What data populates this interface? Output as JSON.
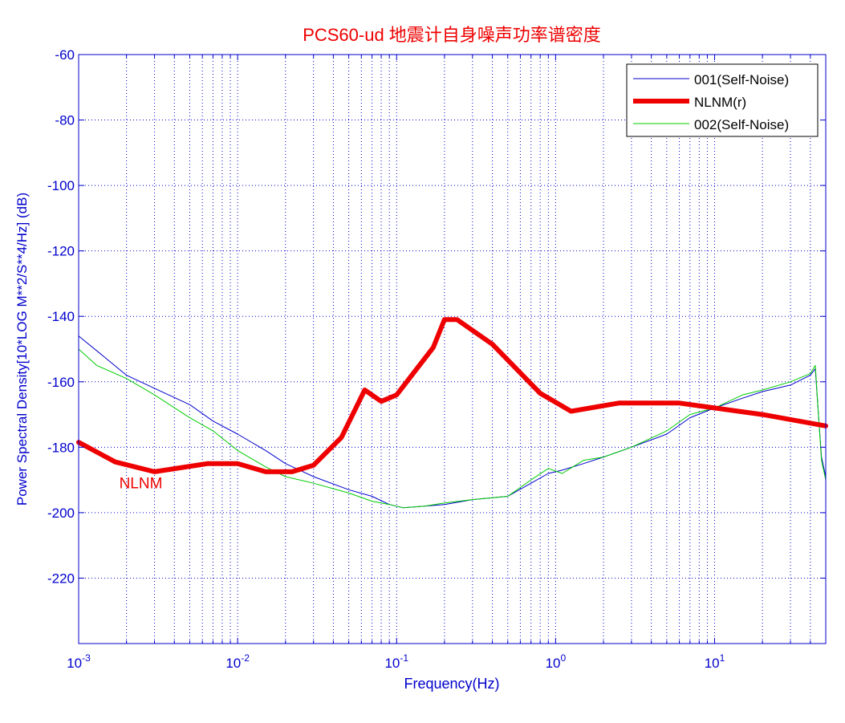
{
  "chart_data": {
    "type": "line",
    "title": "PCS60-ud 地震计自身噪声功率谱密度",
    "xlabel": "Frequency(Hz)",
    "ylabel": "Power Spectral Density[10*LOG M**2/S**4/Hz] (dB)",
    "x_scale": "log",
    "xlim": [
      0.001,
      50
    ],
    "ylim": [
      -240,
      -60
    ],
    "x_ticks": [
      {
        "value": 0.001,
        "base": "10",
        "exp": "-3"
      },
      {
        "value": 0.01,
        "base": "10",
        "exp": "-2"
      },
      {
        "value": 0.1,
        "base": "10",
        "exp": "-1"
      },
      {
        "value": 1,
        "base": "10",
        "exp": "0"
      },
      {
        "value": 10,
        "base": "10",
        "exp": "1"
      }
    ],
    "y_ticks": [
      -60,
      -80,
      -100,
      -120,
      -140,
      -160,
      -180,
      -200,
      -220
    ],
    "y_tick_labels": [
      "-60",
      "-80",
      "-100",
      "-120",
      "-140",
      "-160",
      "-180",
      "-200",
      "-220"
    ],
    "grid": true,
    "legend_position": "top-right",
    "annotation": {
      "text": "NLNM",
      "x": 0.0018,
      "y": -192.5,
      "color": "#ee0000"
    },
    "series": [
      {
        "name": "001(Self-Noise)",
        "color": "#0000cc",
        "width": 1,
        "x": [
          0.001,
          0.0015,
          0.002,
          0.003,
          0.005,
          0.007,
          0.01,
          0.015,
          0.02,
          0.03,
          0.05,
          0.07,
          0.09,
          0.11,
          0.15,
          0.2,
          0.3,
          0.5,
          0.7,
          0.9,
          1.1,
          1.5,
          2,
          3,
          5,
          7,
          10,
          15,
          20,
          30,
          40,
          43,
          45,
          47,
          50
        ],
        "y": [
          -146,
          -153,
          -158,
          -162,
          -167,
          -172,
          -176,
          -181,
          -185,
          -189,
          -193,
          -195,
          -197.5,
          -198.5,
          -198,
          -197.5,
          -196,
          -195,
          -191,
          -188,
          -187,
          -185,
          -183,
          -180,
          -176,
          -171,
          -168,
          -165,
          -163,
          -161,
          -158,
          -156,
          -170,
          -183,
          -189
        ]
      },
      {
        "name": "NLNM(r)",
        "color": "#ee0000",
        "width": 6,
        "x": [
          0.001,
          0.0017,
          0.003,
          0.0065,
          0.01,
          0.015,
          0.022,
          0.03,
          0.045,
          0.063,
          0.08,
          0.1,
          0.17,
          0.2,
          0.24,
          0.4,
          0.8,
          1.25,
          2.5,
          6,
          10,
          20,
          50
        ],
        "y": [
          -178.5,
          -184.5,
          -187.5,
          -185,
          -185,
          -187.5,
          -187.5,
          -185.5,
          -177,
          -162.5,
          -166,
          -164,
          -149.5,
          -141,
          -141,
          -148.5,
          -163.5,
          -169,
          -166.5,
          -166.5,
          -168,
          -170,
          -173.5
        ]
      },
      {
        "name": "002(Self-Noise)",
        "color": "#00cc00",
        "width": 1,
        "x": [
          0.001,
          0.0013,
          0.002,
          0.003,
          0.005,
          0.007,
          0.01,
          0.015,
          0.02,
          0.03,
          0.05,
          0.07,
          0.09,
          0.11,
          0.15,
          0.2,
          0.3,
          0.5,
          0.7,
          0.9,
          1.1,
          1.5,
          2,
          3,
          5,
          7,
          10,
          15,
          20,
          30,
          40,
          43,
          45,
          47,
          50
        ],
        "y": [
          -150,
          -155,
          -159,
          -164,
          -171,
          -175,
          -181,
          -186,
          -189,
          -191,
          -194,
          -196.5,
          -197.5,
          -198.5,
          -198,
          -197,
          -196,
          -195,
          -190,
          -186.5,
          -188,
          -184,
          -183,
          -180,
          -175,
          -170,
          -168,
          -164,
          -162.5,
          -160,
          -157.5,
          -155,
          -170,
          -184,
          -190
        ]
      }
    ]
  }
}
